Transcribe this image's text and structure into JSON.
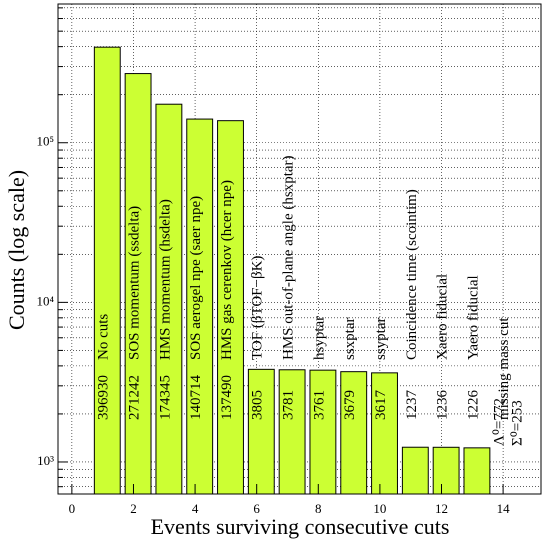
{
  "chart_data": {
    "type": "histogram",
    "x_label": "Events surviving consecutive cuts",
    "y_label": "Counts (log scale)",
    "bins": [
      0.65,
      1.65,
      2.65,
      3.65,
      4.65,
      5.65,
      6.65,
      7.65,
      8.65,
      9.65,
      10.65,
      11.65,
      12.65,
      13.65,
      14.65
    ],
    "values": [
      396930,
      271242,
      174345,
      140714,
      137490,
      3805,
      3781,
      3761,
      3679,
      3617,
      1237,
      1236,
      1226,
      null
    ],
    "cut_names": [
      "No cuts",
      "SOS momentum (ssdelta)",
      "HMS momentum (hsdelta)",
      "SOS aerogel npe (saer npe)",
      "HMS gas cerenkov (hcer npe)",
      "TOF (βTOF−βK)",
      "HMS out-of-plane angle (hsxptar)",
      "hsyptar",
      "ssxptar",
      "ssyptar",
      "Coincidence time (scointim)",
      "Xaero fiducial",
      "Yaero fiducial",
      "missing mass cut"
    ],
    "annotations": [
      "Λ⁰=772",
      "Σ⁰=253"
    ],
    "color": "#ccff33",
    "log_y": true,
    "grid": true,
    "xlim": [
      -0.45,
      15.23
    ],
    "xticks": [
      0,
      2,
      4,
      6,
      8,
      10,
      12,
      14
    ],
    "ylim": [
      630,
      740000
    ],
    "yticks": [
      {
        "value": 1000,
        "label": "10³"
      },
      {
        "value": 10000,
        "label": "10⁴"
      },
      {
        "value": 100000,
        "label": "10⁵"
      }
    ],
    "yminorticks": [
      700,
      800,
      900,
      2000,
      3000,
      4000,
      5000,
      6000,
      7000,
      8000,
      9000,
      20000,
      30000,
      40000,
      50000,
      60000,
      70000,
      80000,
      90000,
      200000,
      300000,
      400000,
      500000,
      600000,
      700000
    ]
  }
}
